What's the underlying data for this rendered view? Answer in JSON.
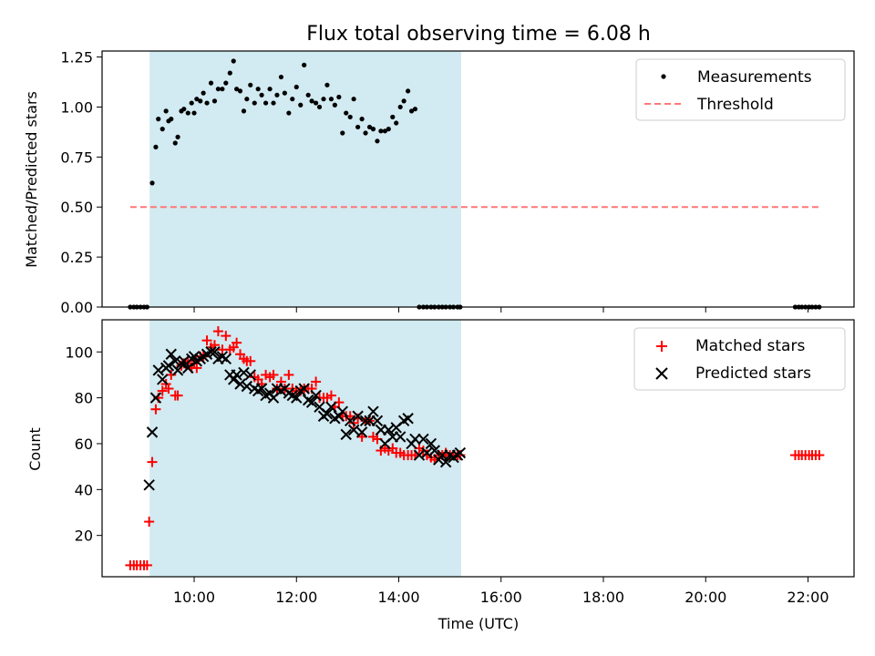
{
  "chart_data": [
    {
      "type": "scatter",
      "title": "Flux total observing time = 6.08 h",
      "ylabel": "Matched/Predicted stars",
      "xlabel": "",
      "xlim": [
        8.2,
        22.9
      ],
      "ylim": [
        0.0,
        1.28
      ],
      "yticks": [
        "0.00",
        "0.25",
        "0.50",
        "0.75",
        "1.00",
        "1.25"
      ],
      "shaded_span": [
        9.13,
        15.22
      ],
      "threshold": 0.5,
      "threshold_range": [
        8.75,
        22.25
      ],
      "legend_position": "upper right",
      "grid": false,
      "series": [
        {
          "name": "Measurements",
          "x": [
            8.75,
            8.82,
            8.88,
            8.95,
            9.02,
            9.08,
            9.18,
            9.25,
            9.3,
            9.38,
            9.45,
            9.5,
            9.55,
            9.63,
            9.68,
            9.75,
            9.8,
            9.88,
            9.95,
            10.0,
            10.05,
            10.12,
            10.18,
            10.25,
            10.33,
            10.4,
            10.47,
            10.55,
            10.62,
            10.7,
            10.77,
            10.83,
            10.9,
            10.97,
            11.03,
            11.1,
            11.18,
            11.25,
            11.32,
            11.4,
            11.48,
            11.55,
            11.62,
            11.7,
            11.77,
            11.85,
            11.92,
            12.0,
            12.08,
            12.15,
            12.23,
            12.3,
            12.38,
            12.45,
            12.53,
            12.6,
            12.68,
            12.75,
            12.83,
            12.9,
            12.97,
            13.05,
            13.12,
            13.2,
            13.28,
            13.35,
            13.43,
            13.5,
            13.58,
            13.65,
            13.73,
            13.8,
            13.88,
            13.95,
            14.03,
            14.1,
            14.18,
            14.25,
            14.32,
            14.4,
            14.48,
            14.55,
            14.63,
            14.7,
            14.78,
            14.85,
            14.92,
            15.0,
            15.07,
            15.15,
            15.2,
            21.75,
            21.82,
            21.88,
            21.95,
            22.02,
            22.08,
            22.15,
            22.22
          ],
          "y": [
            0.0,
            0.0,
            0.0,
            0.0,
            0.0,
            0.0,
            0.62,
            0.8,
            0.94,
            0.89,
            0.98,
            0.93,
            0.94,
            0.82,
            0.85,
            0.98,
            0.99,
            0.97,
            1.02,
            0.97,
            1.04,
            1.03,
            1.07,
            1.02,
            1.12,
            1.03,
            1.09,
            1.09,
            1.12,
            1.17,
            1.23,
            1.09,
            1.08,
            0.98,
            1.04,
            1.11,
            1.02,
            1.09,
            1.06,
            1.02,
            1.09,
            1.02,
            1.06,
            1.15,
            1.07,
            0.97,
            1.04,
            1.1,
            1.01,
            1.21,
            1.06,
            1.03,
            1.02,
            1.0,
            1.04,
            1.11,
            1.04,
            1.01,
            1.05,
            0.87,
            0.97,
            0.95,
            1.04,
            0.9,
            0.94,
            0.87,
            0.9,
            0.89,
            0.83,
            0.88,
            0.88,
            0.89,
            0.95,
            0.92,
            1.0,
            1.03,
            1.08,
            0.98,
            0.99,
            0.0,
            0.0,
            0.0,
            0.0,
            0.0,
            0.0,
            0.0,
            0.0,
            0.0,
            0.0,
            0.0,
            0.0,
            0.0,
            0.0,
            0.0,
            0.0,
            0.0,
            0.0,
            0.0,
            0.0
          ],
          "color": "#000000"
        },
        {
          "name": "Threshold",
          "color": "#ff7777",
          "style": "dashed"
        }
      ]
    },
    {
      "type": "scatter",
      "title": "",
      "xlabel": "Time (UTC)",
      "ylabel": "Count",
      "xlim": [
        8.2,
        22.9
      ],
      "ylim": [
        2,
        114
      ],
      "yticks": [
        "20",
        "40",
        "60",
        "80",
        "100"
      ],
      "xticks": [
        "10:00",
        "12:00",
        "14:00",
        "16:00",
        "18:00",
        "20:00",
        "22:00"
      ],
      "shaded_span": [
        9.13,
        15.22
      ],
      "legend_position": "upper right",
      "grid": false,
      "series": [
        {
          "name": "Matched stars",
          "marker": "+",
          "color": "#ff0000",
          "x": [
            8.75,
            8.82,
            8.88,
            8.95,
            9.02,
            9.08,
            9.12,
            9.18,
            9.25,
            9.3,
            9.38,
            9.45,
            9.5,
            9.55,
            9.63,
            9.68,
            9.75,
            9.8,
            9.88,
            9.95,
            10.0,
            10.05,
            10.12,
            10.18,
            10.25,
            10.33,
            10.4,
            10.47,
            10.55,
            10.62,
            10.7,
            10.77,
            10.83,
            10.9,
            10.97,
            11.03,
            11.1,
            11.18,
            11.25,
            11.32,
            11.4,
            11.48,
            11.55,
            11.62,
            11.7,
            11.77,
            11.85,
            11.92,
            12.0,
            12.08,
            12.15,
            12.23,
            12.3,
            12.38,
            12.45,
            12.53,
            12.6,
            12.68,
            12.75,
            12.83,
            12.9,
            12.97,
            13.05,
            13.12,
            13.2,
            13.28,
            13.35,
            13.43,
            13.5,
            13.58,
            13.65,
            13.73,
            13.8,
            13.88,
            13.95,
            14.03,
            14.1,
            14.18,
            14.25,
            14.32,
            14.4,
            14.48,
            14.55,
            14.63,
            14.7,
            14.78,
            14.85,
            14.92,
            15.0,
            15.07,
            15.15,
            15.2,
            21.75,
            21.82,
            21.88,
            21.95,
            22.02,
            22.08,
            22.15,
            22.22
          ],
          "y": [
            7,
            7,
            7,
            7,
            7,
            7,
            26,
            52,
            75,
            80,
            83,
            86,
            84,
            90,
            81,
            81,
            94,
            95,
            96,
            93,
            95,
            93,
            98,
            98,
            105,
            102,
            103,
            109,
            101,
            107,
            101,
            102,
            104,
            99,
            97,
            96,
            96,
            89,
            88,
            86,
            90,
            89,
            90,
            84,
            87,
            84,
            90,
            84,
            83,
            83,
            84,
            84,
            84,
            87,
            80,
            80,
            80,
            81,
            76,
            78,
            72,
            72,
            72,
            69,
            71,
            63,
            70,
            70,
            63,
            62,
            57,
            58,
            57,
            58,
            56,
            56,
            55,
            55,
            55,
            55,
            58,
            57,
            55,
            54,
            53,
            55,
            55,
            56,
            55,
            55,
            55,
            55,
            55,
            55,
            55,
            55,
            55,
            55,
            55,
            55
          ],
          "pad_note": ""
        },
        {
          "name": "Predicted stars",
          "marker": "x",
          "color": "#000000",
          "x": [
            9.12,
            9.18,
            9.25,
            9.3,
            9.38,
            9.45,
            9.5,
            9.55,
            9.63,
            9.68,
            9.75,
            9.8,
            9.88,
            9.95,
            10.0,
            10.05,
            10.12,
            10.18,
            10.25,
            10.33,
            10.4,
            10.47,
            10.55,
            10.62,
            10.7,
            10.77,
            10.83,
            10.9,
            10.97,
            11.03,
            11.1,
            11.18,
            11.25,
            11.32,
            11.4,
            11.48,
            11.55,
            11.62,
            11.7,
            11.77,
            11.85,
            11.92,
            12.0,
            12.08,
            12.15,
            12.23,
            12.3,
            12.38,
            12.45,
            12.53,
            12.6,
            12.68,
            12.75,
            12.83,
            12.9,
            12.97,
            13.05,
            13.12,
            13.2,
            13.28,
            13.35,
            13.43,
            13.5,
            13.58,
            13.65,
            13.73,
            13.8,
            13.88,
            13.95,
            14.03,
            14.1,
            14.18,
            14.25,
            14.32,
            14.4,
            14.48,
            14.55,
            14.63,
            14.7,
            14.78,
            14.85,
            14.92,
            15.0,
            15.07,
            15.15,
            15.2
          ],
          "y": [
            42,
            65,
            80,
            92,
            88,
            93,
            94,
            99,
            96,
            92,
            95,
            96,
            93,
            97,
            98,
            96,
            97,
            98,
            99,
            100,
            100,
            97,
            98,
            97,
            90,
            88,
            90,
            86,
            91,
            85,
            90,
            84,
            83,
            84,
            81,
            82,
            80,
            84,
            83,
            84,
            82,
            81,
            80,
            83,
            84,
            79,
            78,
            81,
            76,
            72,
            73,
            76,
            71,
            72,
            74,
            64,
            70,
            66,
            72,
            65,
            70,
            70,
            74,
            70,
            66,
            60,
            66,
            63,
            67,
            63,
            70,
            71,
            60,
            62,
            55,
            62,
            56,
            60,
            57,
            53,
            55,
            52,
            55,
            54,
            55,
            56
          ]
        }
      ]
    }
  ]
}
